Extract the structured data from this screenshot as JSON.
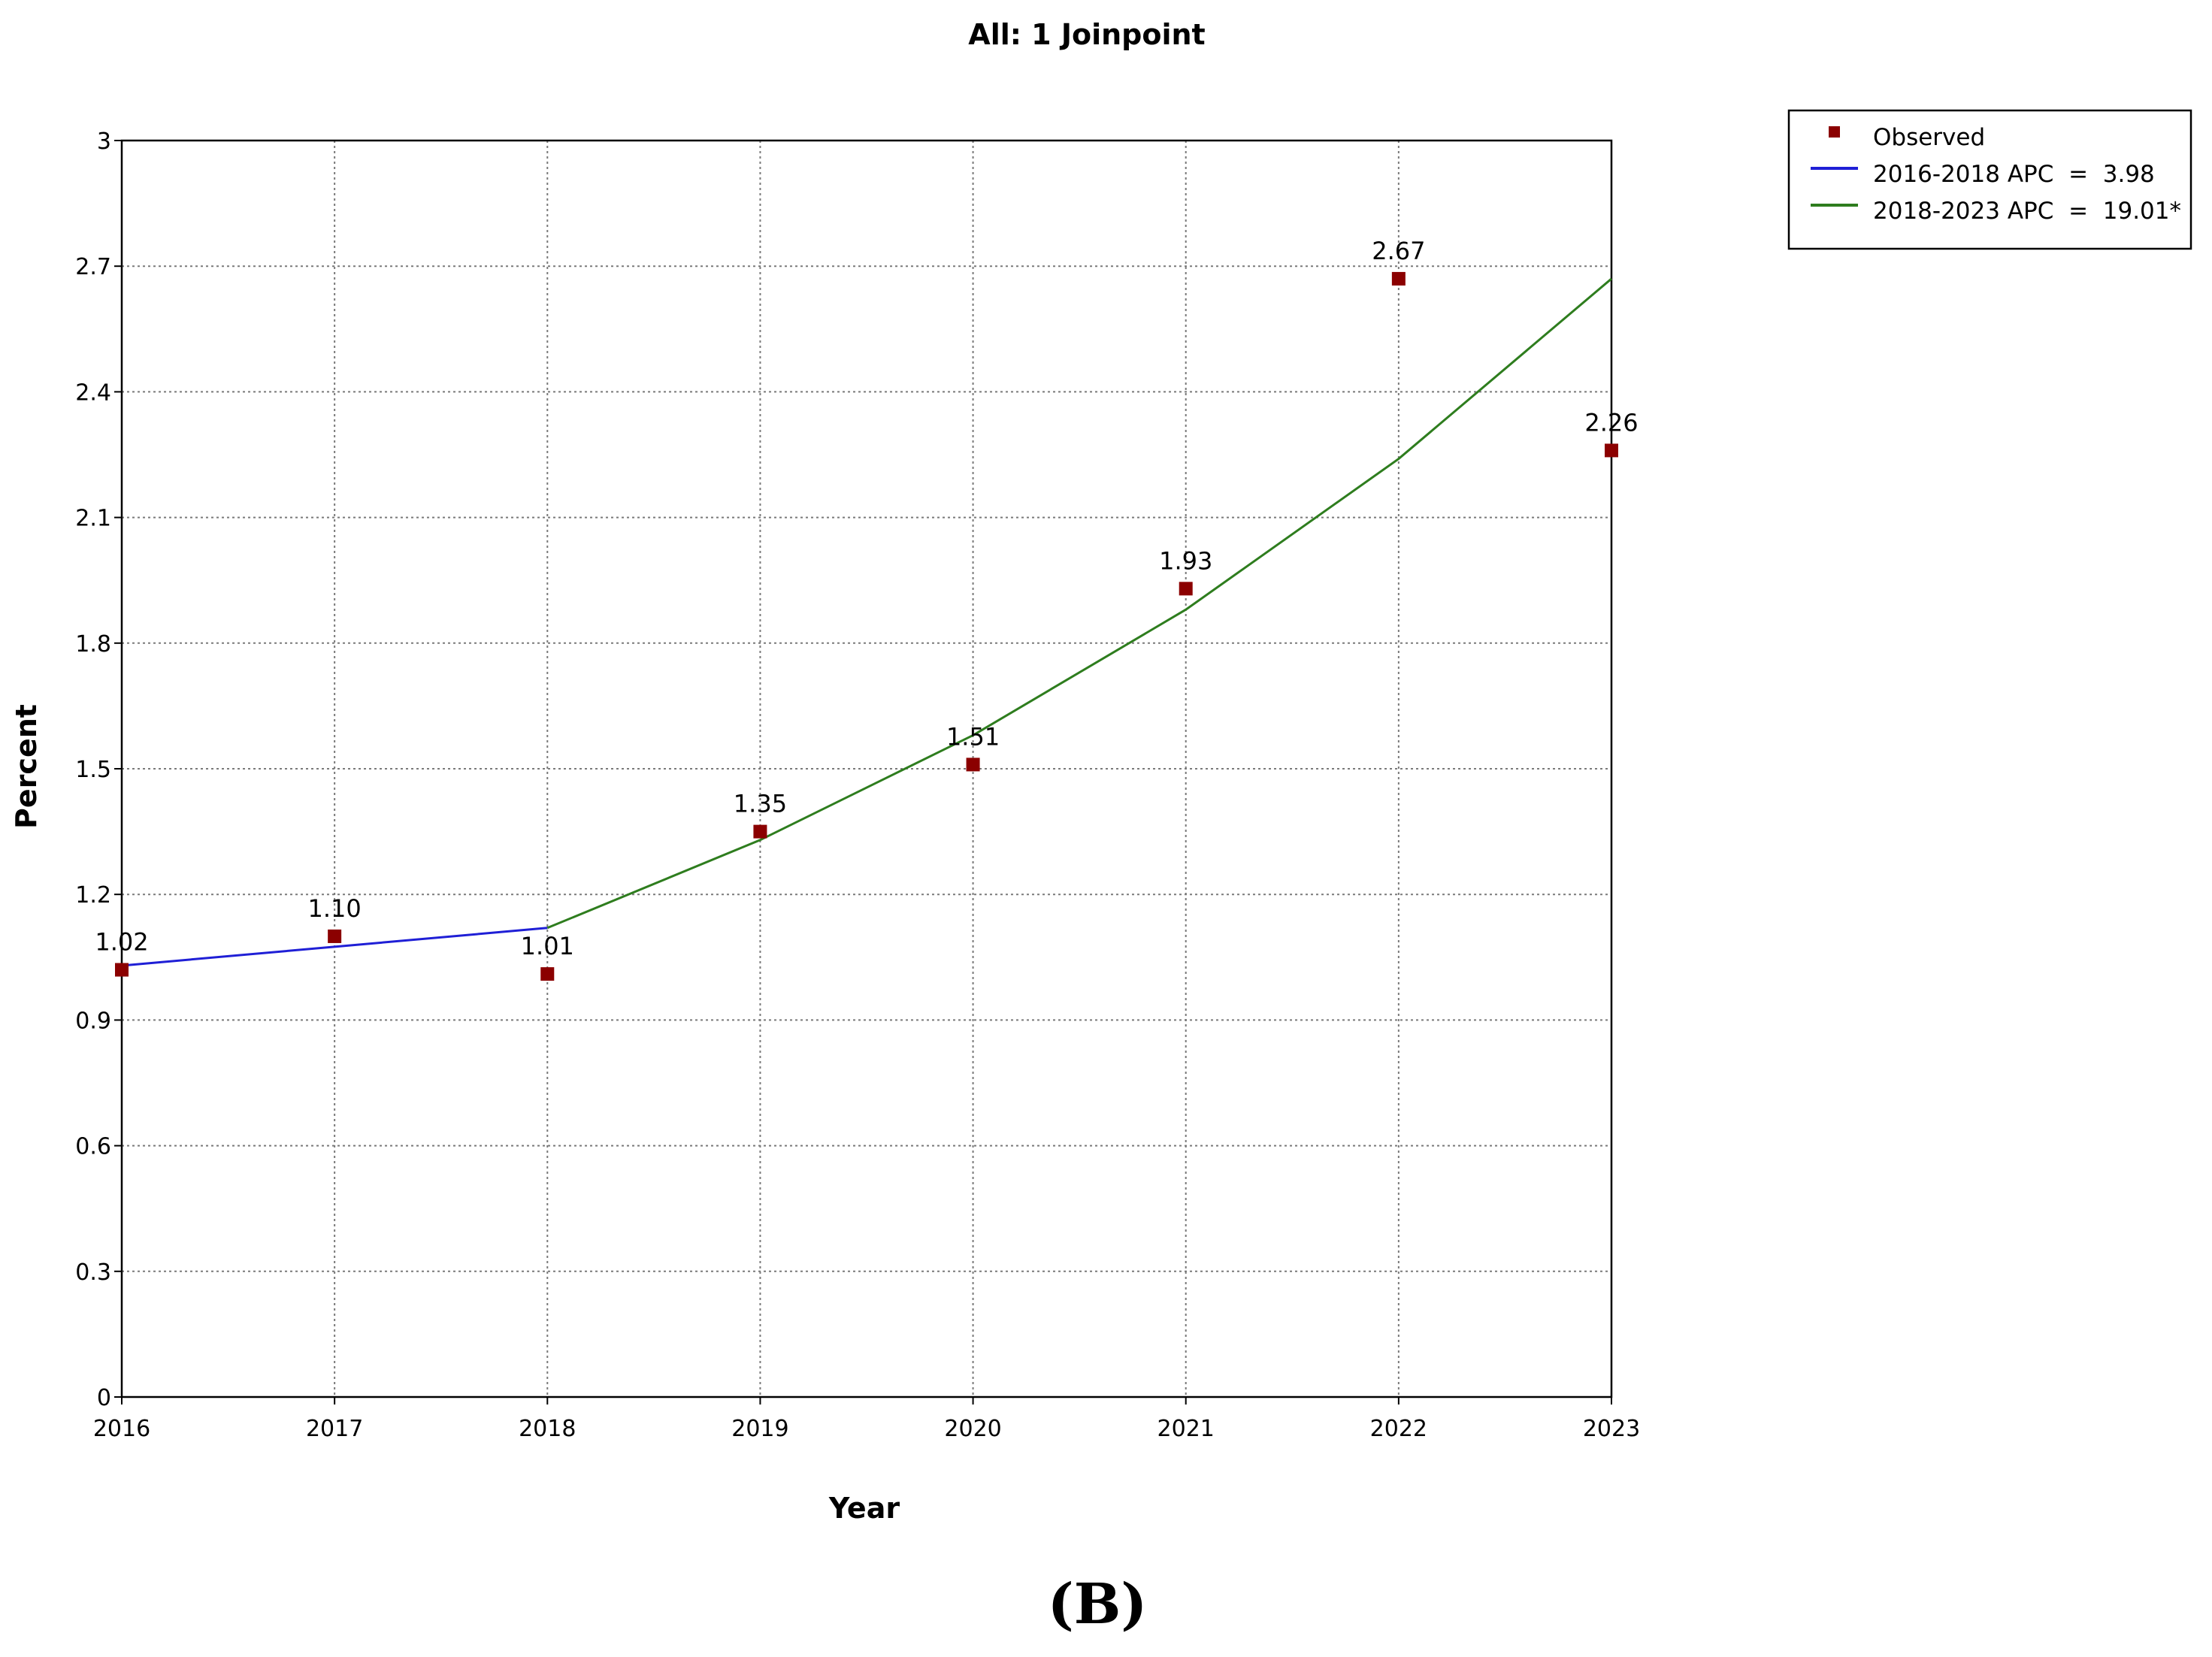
{
  "chart_data": {
    "type": "line",
    "title": "All: 1 Joinpoint",
    "xlabel": "Year",
    "ylabel": "Percent",
    "xlim": [
      2016,
      2023
    ],
    "ylim": [
      0,
      3
    ],
    "x_ticks": [
      "2016",
      "2017",
      "2018",
      "2019",
      "2020",
      "2021",
      "2022",
      "2023"
    ],
    "y_ticks": [
      "0",
      "0.3",
      "0.6",
      "0.9",
      "1.2",
      "1.5",
      "1.8",
      "2.1",
      "2.4",
      "2.7",
      "3"
    ],
    "grid": true,
    "legend_position": "top-right outside",
    "observed": {
      "name": "Observed",
      "color": "#8b0000",
      "x": [
        2016,
        2017,
        2018,
        2019,
        2020,
        2021,
        2022,
        2023
      ],
      "y": [
        1.02,
        1.1,
        1.01,
        1.35,
        1.51,
        1.93,
        2.67,
        2.26
      ],
      "labels": [
        "1.02",
        "1.10",
        "1.01",
        "1.35",
        "1.51",
        "1.93",
        "2.67",
        "2.26"
      ]
    },
    "series": [
      {
        "name": "2016-2018 APC  =  3.98",
        "color": "#1f1fd6",
        "x": [
          2016,
          2017,
          2018
        ],
        "y": [
          1.03,
          1.075,
          1.12
        ]
      },
      {
        "name": "2018-2023 APC  =  19.01*",
        "color": "#2e7d1e",
        "x": [
          2018,
          2019,
          2020,
          2021,
          2022,
          2023
        ],
        "y": [
          1.12,
          1.33,
          1.58,
          1.88,
          2.24,
          2.67
        ]
      }
    ]
  },
  "panel_label": "(B)"
}
